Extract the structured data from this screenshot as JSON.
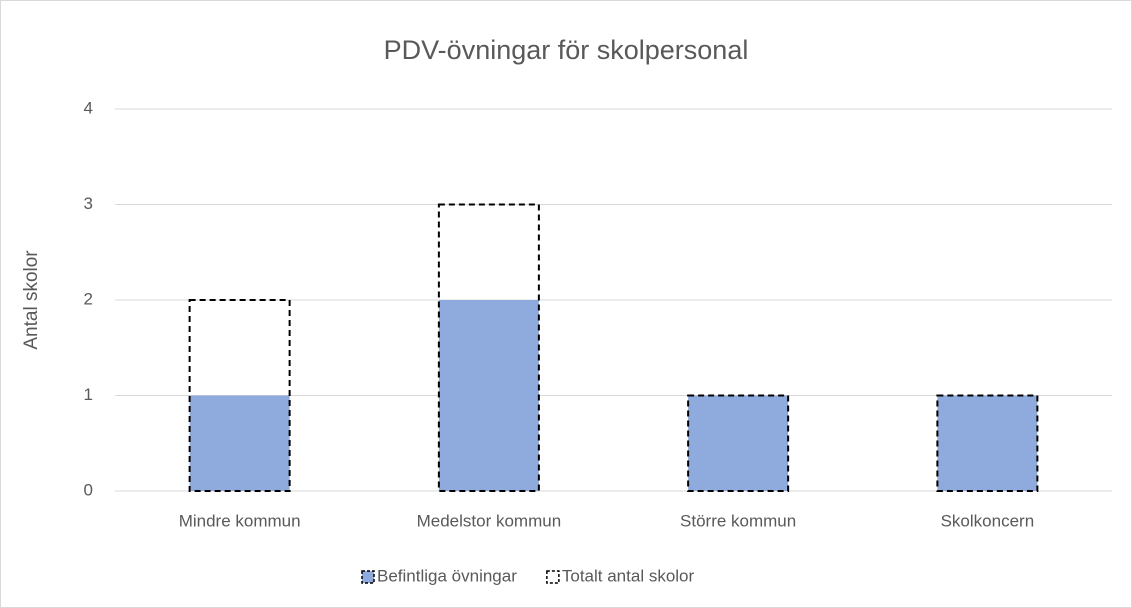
{
  "chart_data": {
    "type": "bar",
    "title": "PDV-övningar för skolpersonal",
    "y_label": "Antal skolor",
    "categories": [
      "Mindre kommun",
      "Medelstor kommun",
      "Större kommun",
      "Skolkoncern"
    ],
    "series": [
      {
        "name": "Befintliga övningar",
        "color": "#8faadc",
        "dashed": false,
        "values": [
          1,
          2,
          1,
          1
        ]
      },
      {
        "name": "Totalt antal skolor",
        "color": "#000000",
        "dashed": true,
        "values": [
          2,
          3,
          1,
          1
        ]
      }
    ],
    "ylim": [
      0,
      4
    ],
    "yticks": [
      0,
      1,
      2,
      3,
      4
    ],
    "grid": true,
    "legend": "bottom"
  }
}
